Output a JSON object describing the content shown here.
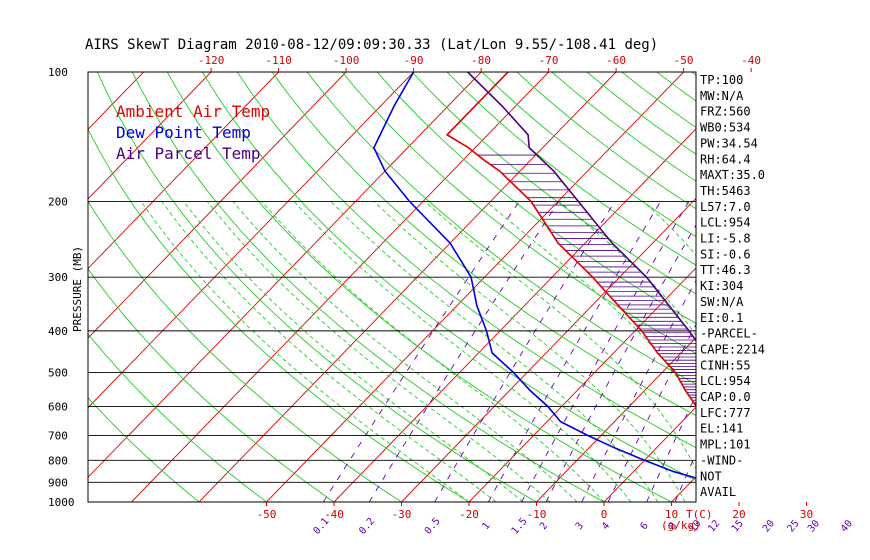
{
  "chart_data": {
    "type": "skew-t",
    "title": "AIRS SkewT Diagram 2010-08-12/09:09:30.33 (Lat/Lon 9.55/-108.41 deg)",
    "ylabel": "PRESSURE (MB)",
    "xlabel": "T(C)",
    "mixing_ratio_unit": "(g/kg)",
    "pressure_levels": [
      100,
      200,
      300,
      400,
      500,
      600,
      700,
      800,
      900,
      1000
    ],
    "top_temp_ticks": [
      -120,
      -110,
      -100,
      -90,
      -80,
      -70,
      -60,
      -50,
      -40
    ],
    "bottom_temp_ticks": [
      -50,
      -40,
      -30,
      -20,
      -10,
      0,
      10,
      20,
      30
    ],
    "mixing_ratio_ticks": [
      "0.1",
      "0.2",
      "0.5",
      "1",
      "1.5",
      "2",
      "3",
      "4",
      "6",
      "8",
      "10",
      "12",
      "15",
      "20",
      "25",
      "30",
      "40"
    ],
    "legend": [
      {
        "label": "Ambient Air Temp",
        "color": "#e00000"
      },
      {
        "label": "Dew Point Temp",
        "color": "#0000dd"
      },
      {
        "label": "Air Parcel Temp",
        "color": "#4b0082"
      }
    ],
    "series": [
      {
        "name": "Ambient Air Temp",
        "color": "#e00000",
        "points": [
          [
            1000,
            28
          ],
          [
            950,
            22.5
          ],
          [
            900,
            20
          ],
          [
            850,
            17.5
          ],
          [
            800,
            15
          ],
          [
            750,
            11
          ],
          [
            700,
            7.5
          ],
          [
            650,
            4
          ],
          [
            600,
            0
          ],
          [
            550,
            -4
          ],
          [
            500,
            -8
          ],
          [
            450,
            -13.5
          ],
          [
            400,
            -19
          ],
          [
            350,
            -26
          ],
          [
            300,
            -34
          ],
          [
            250,
            -44
          ],
          [
            200,
            -54
          ],
          [
            170,
            -63
          ],
          [
            160,
            -67
          ],
          [
            150,
            -71
          ],
          [
            140,
            -76
          ],
          [
            100,
            -76
          ]
        ]
      },
      {
        "name": "Dew Point Temp",
        "color": "#0000dd",
        "points": [
          [
            1000,
            22
          ],
          [
            950,
            18
          ],
          [
            900,
            13
          ],
          [
            850,
            6
          ],
          [
            800,
            0
          ],
          [
            750,
            -6
          ],
          [
            700,
            -12
          ],
          [
            650,
            -18
          ],
          [
            600,
            -22
          ],
          [
            550,
            -27
          ],
          [
            500,
            -32
          ],
          [
            450,
            -38
          ],
          [
            400,
            -42
          ],
          [
            350,
            -47
          ],
          [
            300,
            -52
          ],
          [
            250,
            -60
          ],
          [
            200,
            -72
          ],
          [
            170,
            -80
          ],
          [
            150,
            -85
          ],
          [
            120,
            -88
          ],
          [
            100,
            -90
          ]
        ]
      },
      {
        "name": "Air Parcel Temp",
        "color": "#4b0082",
        "points": [
          [
            1000,
            28
          ],
          [
            954,
            22.5
          ],
          [
            900,
            21.5
          ],
          [
            800,
            17.5
          ],
          [
            700,
            12
          ],
          [
            600,
            6
          ],
          [
            500,
            -1.5
          ],
          [
            400,
            -12
          ],
          [
            300,
            -26
          ],
          [
            250,
            -36
          ],
          [
            200,
            -47
          ],
          [
            170,
            -55
          ],
          [
            150,
            -62
          ],
          [
            140,
            -64
          ],
          [
            120,
            -72
          ],
          [
            100,
            -82
          ]
        ]
      }
    ]
  },
  "side_panel": [
    "TP:100",
    "MW:N/A",
    "FRZ:560",
    "WB0:534",
    "PW:34.54",
    "RH:64.4",
    "MAXT:35.0",
    "TH:5463",
    "L57:7.0",
    "LCL:954",
    "LI:-5.8",
    "SI:-0.6",
    "TT:46.3",
    "KI:304",
    "SW:N/A",
    "EI:0.1",
    "-PARCEL-",
    "CAPE:2214",
    "CINH:55",
    "LCL:954",
    "CAP:0.0",
    "LFC:777",
    "EL:141",
    "MPL:101",
    "-WIND-",
    "NOT",
    "AVAIL"
  ],
  "colors": {
    "isotherm": "#e00000",
    "dry_adiabat": "#22cc22",
    "moist_adiabat": "#22cc22",
    "mixing_ratio": "#6a00b0",
    "isobar": "#000000",
    "cape_hatch": "#4b0082"
  }
}
